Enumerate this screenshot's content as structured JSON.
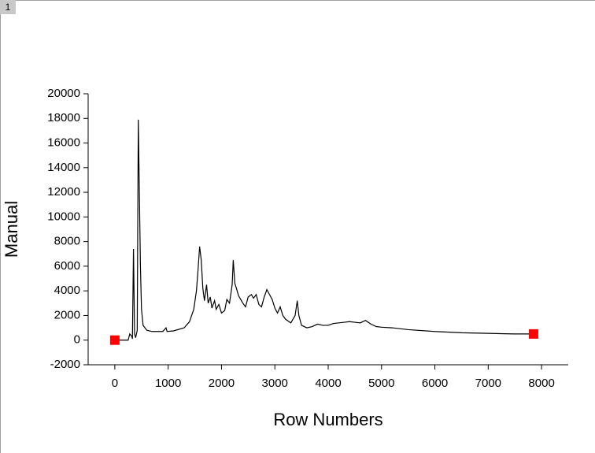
{
  "page_label": "1",
  "chart_data": {
    "type": "line",
    "xlabel": "Row Numbers",
    "ylabel": "Manual",
    "color": "#000000",
    "x": [
      0,
      250,
      280,
      320,
      330,
      350,
      370,
      390,
      420,
      440,
      460,
      480,
      500,
      530,
      600,
      700,
      900,
      960,
      980,
      1100,
      1300,
      1400,
      1480,
      1530,
      1560,
      1590,
      1620,
      1650,
      1680,
      1720,
      1750,
      1790,
      1820,
      1870,
      1900,
      1950,
      2000,
      2060,
      2100,
      2150,
      2200,
      2220,
      2250,
      2280,
      2320,
      2400,
      2450,
      2500,
      2560,
      2600,
      2650,
      2700,
      2750,
      2800,
      2850,
      2900,
      2950,
      3000,
      3050,
      3100,
      3150,
      3200,
      3300,
      3380,
      3420,
      3450,
      3500,
      3600,
      3700,
      3800,
      3900,
      4000,
      4100,
      4200,
      4300,
      4400,
      4500,
      4600,
      4700,
      4800,
      4900,
      5000,
      5200,
      5500,
      6000,
      6500,
      7000,
      7500,
      7850
    ],
    "values": [
      0,
      0,
      500,
      300,
      100,
      7400,
      500,
      200,
      800,
      17900,
      12000,
      6000,
      2500,
      1200,
      800,
      700,
      700,
      1000,
      700,
      750,
      1000,
      1500,
      2500,
      4000,
      5700,
      7600,
      6500,
      4200,
      3200,
      4500,
      3000,
      3500,
      2600,
      3200,
      2500,
      2900,
      2200,
      2400,
      3300,
      3000,
      4500,
      6500,
      4600,
      4200,
      3600,
      3000,
      2700,
      3500,
      3700,
      3400,
      3700,
      2900,
      2700,
      3500,
      4100,
      3700,
      3300,
      2600,
      2200,
      2700,
      2000,
      1700,
      1400,
      2000,
      3200,
      2000,
      1200,
      1000,
      1100,
      1300,
      1200,
      1200,
      1350,
      1400,
      1450,
      1500,
      1450,
      1400,
      1600,
      1300,
      1100,
      1050,
      1000,
      850,
      700,
      600,
      550,
      500,
      500
    ],
    "markers": {
      "color": "#ff0000",
      "x": [
        0,
        7850
      ],
      "values": [
        0,
        500
      ]
    },
    "xlim": [
      -500,
      8500
    ],
    "xticks": [
      0,
      1000,
      2000,
      3000,
      4000,
      5000,
      6000,
      7000,
      8000
    ],
    "ylim": [
      -2000,
      20000
    ],
    "yticks": [
      -2000,
      0,
      2000,
      4000,
      6000,
      8000,
      10000,
      12000,
      14000,
      16000,
      18000,
      20000
    ]
  }
}
